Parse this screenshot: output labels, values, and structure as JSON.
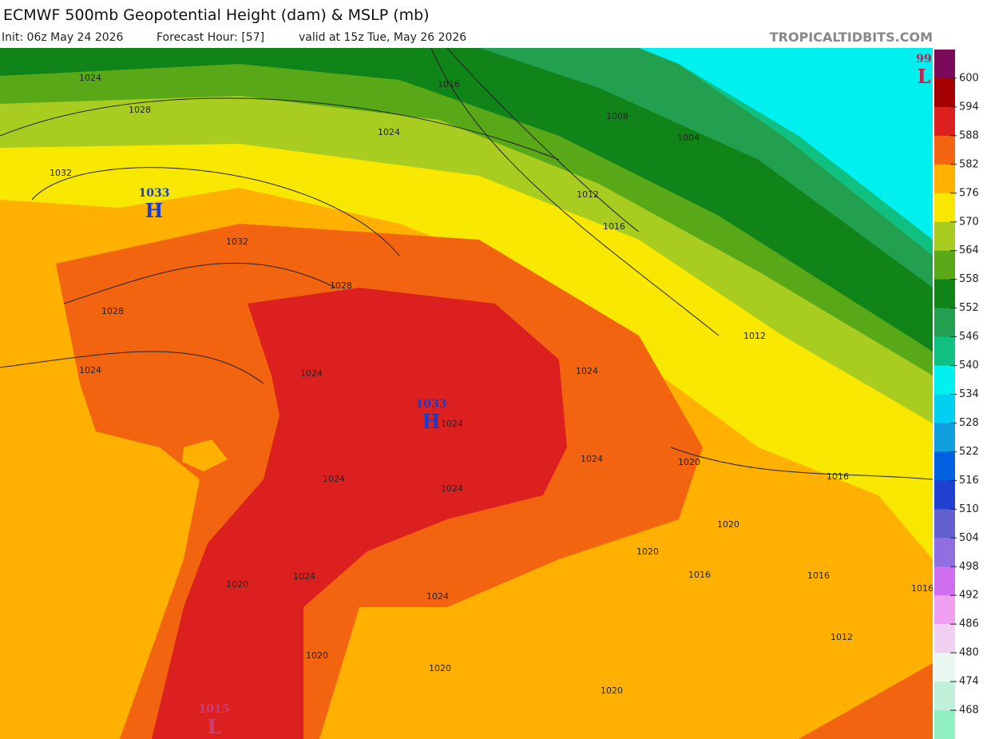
{
  "header": {
    "title": "ECMWF 500mb Geopotential Height (dam) & MSLP (mb)",
    "init": "Init: 06z May 24 2026",
    "forecast_hour": "Forecast Hour: [57]",
    "valid": "valid at 15z Tue, May 26 2026",
    "site": "TROPICALTIDBITS.COM"
  },
  "map": {
    "pressure_centers": [
      {
        "value": "1033",
        "symbol": "H"
      },
      {
        "value": "1033",
        "symbol": "H"
      },
      {
        "value": "99",
        "symbol": "L"
      },
      {
        "value": "1015",
        "symbol": "L"
      }
    ],
    "isobar_labels": [
      1024,
      1028,
      1032,
      1016,
      1024,
      1008,
      1004,
      1012,
      1016,
      1032,
      1028,
      1028,
      1024,
      1024,
      1024,
      1012,
      1024,
      1024,
      1024,
      1020,
      1016,
      1024,
      1020,
      1020,
      1016,
      1016,
      1016,
      1024,
      1020,
      1024,
      1012,
      1020,
      1020,
      1020
    ]
  },
  "colorbar": {
    "levels": [
      600,
      594,
      588,
      582,
      576,
      570,
      564,
      558,
      552,
      546,
      540,
      534,
      528,
      522,
      516,
      510,
      504,
      498,
      492,
      486,
      480,
      474,
      468
    ],
    "colors": [
      "#7a0a5a",
      "#a40000",
      "#dc2020",
      "#f26410",
      "#ffb000",
      "#f8e800",
      "#a8cc20",
      "#58a818",
      "#108418",
      "#22a050",
      "#10c080",
      "#00f0f0",
      "#00d0f0",
      "#10a0e0",
      "#0060e0",
      "#2040d0",
      "#6060d0",
      "#9070e0",
      "#d070f0",
      "#f0a0f0",
      "#f0d0f0",
      "#e8f8f0",
      "#c0f0d8",
      "#90f0c0"
    ]
  }
}
